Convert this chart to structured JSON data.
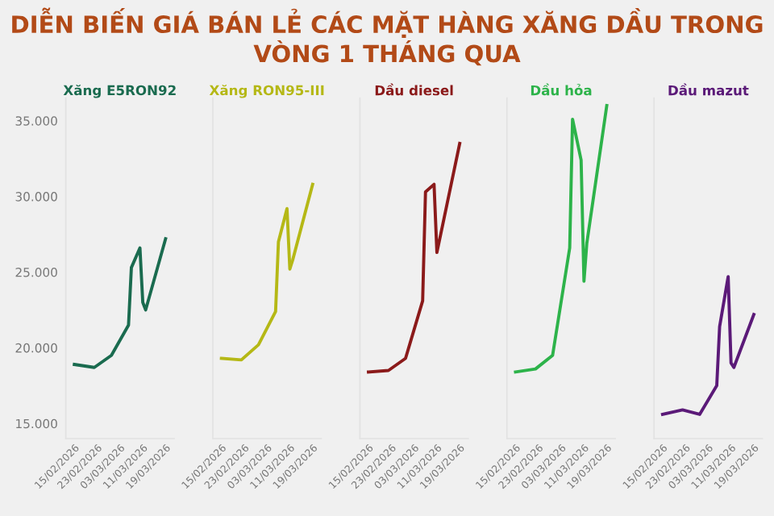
{
  "chart_data": [
    {
      "type": "line",
      "title": "DIỄN BIẾN GIÁ BÁN LẺ CÁC MẶT HÀNG XĂNG DẦU TRONG VÒNG 1 THÁNG QUA",
      "xlim": [
        "2026-02-12",
        "2026-03-22"
      ],
      "ylim": [
        14000,
        36500
      ],
      "yticks": [
        {
          "value": 15000,
          "label": "15.000"
        },
        {
          "value": 20000,
          "label": "20.000"
        },
        {
          "value": 25000,
          "label": "25.000"
        },
        {
          "value": 30000,
          "label": "30.000"
        },
        {
          "value": 35000,
          "label": "35.000"
        }
      ],
      "xticks": [
        {
          "value": "2026-02-15",
          "label": "15/02/2026"
        },
        {
          "value": "2026-02-23",
          "label": "23/02/2026"
        },
        {
          "value": "2026-03-03",
          "label": "03/03/2026"
        },
        {
          "value": "2026-03-11",
          "label": "11/03/2026"
        },
        {
          "value": "2026-03-19",
          "label": "19/03/2026"
        }
      ],
      "series": [
        {
          "name": "Xăng E5RON92",
          "color": "#1a6b4f",
          "x": [
            "2026-02-15",
            "2026-02-22",
            "2026-02-28",
            "2026-03-06",
            "2026-03-07",
            "2026-03-10",
            "2026-03-11",
            "2026-03-12",
            "2026-03-19"
          ],
          "values": [
            18900,
            18700,
            19500,
            21500,
            25300,
            26600,
            23000,
            22500,
            27200
          ]
        }
      ]
    },
    {
      "type": "line",
      "tick_labels": "x",
      "xlim": [
        "2026-02-12",
        "2026-03-22"
      ],
      "ylim": [
        14000,
        36500
      ],
      "xticks": [
        {
          "value": "2026-02-15",
          "label": "15/02/2026"
        },
        {
          "value": "2026-02-23",
          "label": "23/02/2026"
        },
        {
          "value": "2026-03-03",
          "label": "03/03/2026"
        },
        {
          "value": "2026-03-11",
          "label": "11/03/2026"
        },
        {
          "value": "2026-03-19",
          "label": "19/03/2026"
        }
      ],
      "series": [
        {
          "name": "Xăng RON95-III",
          "color": "#b5b816",
          "x": [
            "2026-02-15",
            "2026-02-22",
            "2026-02-28",
            "2026-03-06",
            "2026-03-07",
            "2026-03-10",
            "2026-03-11",
            "2026-03-12",
            "2026-03-19"
          ],
          "values": [
            19300,
            19200,
            20200,
            22400,
            27000,
            29200,
            25200,
            25800,
            30800
          ]
        }
      ]
    },
    {
      "type": "line",
      "tick_labels": "x",
      "xlim": [
        "2026-02-12",
        "2026-03-22"
      ],
      "ylim": [
        14000,
        36500
      ],
      "xticks": [
        {
          "value": "2026-02-15",
          "label": "15/02/2026"
        },
        {
          "value": "2026-02-23",
          "label": "23/02/2026"
        },
        {
          "value": "2026-03-03",
          "label": "03/03/2026"
        },
        {
          "value": "2026-03-11",
          "label": "11/03/2026"
        },
        {
          "value": "2026-03-19",
          "label": "19/03/2026"
        }
      ],
      "series": [
        {
          "name": "Dầu diesel",
          "color": "#8b1a1a",
          "x": [
            "2026-02-15",
            "2026-02-22",
            "2026-02-28",
            "2026-03-06",
            "2026-03-07",
            "2026-03-10",
            "2026-03-11",
            "2026-03-19"
          ],
          "values": [
            18400,
            18500,
            19300,
            23100,
            30300,
            30800,
            26300,
            33500
          ]
        }
      ]
    },
    {
      "type": "line",
      "tick_labels": "x",
      "xlim": [
        "2026-02-12",
        "2026-03-22"
      ],
      "ylim": [
        14000,
        36500
      ],
      "xticks": [
        {
          "value": "2026-02-15",
          "label": "15/02/2026"
        },
        {
          "value": "2026-02-23",
          "label": "23/02/2026"
        },
        {
          "value": "2026-03-03",
          "label": "03/03/2026"
        },
        {
          "value": "2026-03-11",
          "label": "11/03/2026"
        },
        {
          "value": "2026-03-19",
          "label": "19/03/2026"
        }
      ],
      "series": [
        {
          "name": "Dầu hỏa",
          "color": "#2db34a",
          "x": [
            "2026-02-15",
            "2026-02-22",
            "2026-02-28",
            "2026-03-06",
            "2026-03-07",
            "2026-03-10",
            "2026-03-11",
            "2026-03-12",
            "2026-03-19"
          ],
          "values": [
            18400,
            18600,
            19500,
            26600,
            35100,
            32400,
            24400,
            26900,
            36000
          ]
        }
      ]
    },
    {
      "type": "line",
      "tick_labels": "x",
      "xlim": [
        "2026-02-12",
        "2026-03-22"
      ],
      "ylim": [
        14000,
        36500
      ],
      "xticks": [
        {
          "value": "2026-02-15",
          "label": "15/02/2026"
        },
        {
          "value": "2026-02-23",
          "label": "23/02/2026"
        },
        {
          "value": "2026-03-03",
          "label": "03/03/2026"
        },
        {
          "value": "2026-03-11",
          "label": "11/03/2026"
        },
        {
          "value": "2026-03-19",
          "label": "19/03/2026"
        }
      ],
      "series": [
        {
          "name": "Dầu mazut",
          "color": "#5b1a78",
          "x": [
            "2026-02-15",
            "2026-02-22",
            "2026-02-28",
            "2026-03-06",
            "2026-03-07",
            "2026-03-10",
            "2026-03-11",
            "2026-03-12",
            "2026-03-19"
          ],
          "values": [
            15600,
            15900,
            15600,
            17500,
            21400,
            24700,
            19000,
            18700,
            22200
          ]
        }
      ]
    }
  ]
}
